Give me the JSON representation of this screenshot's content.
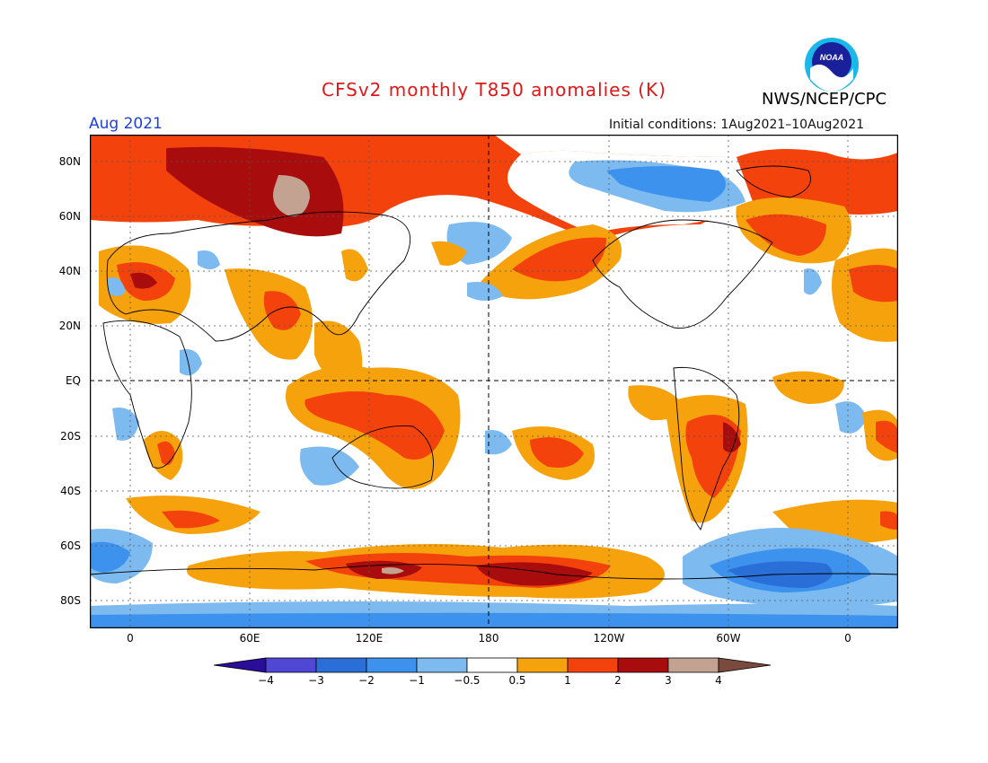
{
  "title": "CFSv2 monthly T850 anomalies (K)",
  "month": "Aug 2021",
  "initial_conditions": "Initial conditions:  1Aug2021–10Aug2021",
  "agency": "NWS/NCEP/CPC",
  "logo_text": "NOAA",
  "lat_labels": [
    "80N",
    "60N",
    "40N",
    "20N",
    "EQ",
    "20S",
    "40S",
    "60S",
    "80S"
  ],
  "lon_labels": [
    "0",
    "60E",
    "120E",
    "180",
    "120W",
    "60W",
    "0"
  ],
  "colorbar": {
    "labels": [
      "−4",
      "−3",
      "−2",
      "−1",
      "−0.5",
      "0.5",
      "1",
      "2",
      "3",
      "4"
    ],
    "colors": [
      "#2a0d99",
      "#5048d4",
      "#2a6ed8",
      "#3d92ee",
      "#7cbaf0",
      "#ffffff",
      "#f6a20c",
      "#f4420c",
      "#a80c0c",
      "#c4a292",
      "#7a4a3c"
    ]
  },
  "map_colors": {
    "warm1": "#f6a20c",
    "warm2": "#f4420c",
    "warm3": "#a80c0c",
    "warm4": "#c4a292",
    "cool1": "#7cbaf0",
    "cool2": "#3d92ee",
    "cool3": "#2a6ed8"
  }
}
